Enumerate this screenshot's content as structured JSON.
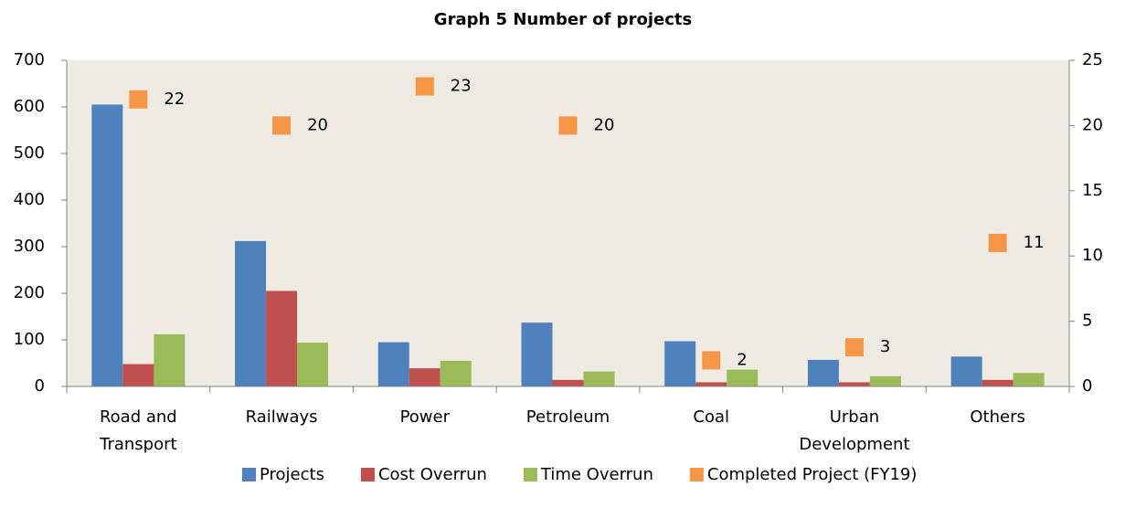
{
  "chart_data": {
    "type": "bar",
    "title": "Graph 5 Number of projects",
    "categories": [
      "Road and Transport",
      "Railways",
      "Power",
      "Petroleum",
      "Coal",
      "Urban Development",
      "Others"
    ],
    "series": [
      {
        "name": "Projects",
        "color": "#4f81bd",
        "values": [
          605,
          312,
          95,
          137,
          97,
          57,
          64
        ]
      },
      {
        "name": "Cost Overrun",
        "color": "#c0504d",
        "values": [
          48,
          205,
          39,
          14,
          9,
          9,
          14
        ]
      },
      {
        "name": "Time Overrun",
        "color": "#9bbb59",
        "values": [
          112,
          94,
          55,
          32,
          36,
          22,
          29
        ]
      },
      {
        "name": "Completed Project (FY19)",
        "color": "#f79646",
        "values": [
          22,
          20,
          23,
          20,
          2,
          3,
          11
        ],
        "axis": "y2",
        "type": "scatter"
      }
    ],
    "ylim": [
      0,
      700
    ],
    "yticks": [
      0,
      100,
      200,
      300,
      400,
      500,
      600,
      700
    ],
    "y2lim": [
      0,
      25
    ],
    "y2ticks": [
      0,
      5,
      10,
      15,
      20,
      25
    ],
    "plot_background": "#eeebe2",
    "legend": "bottom"
  }
}
